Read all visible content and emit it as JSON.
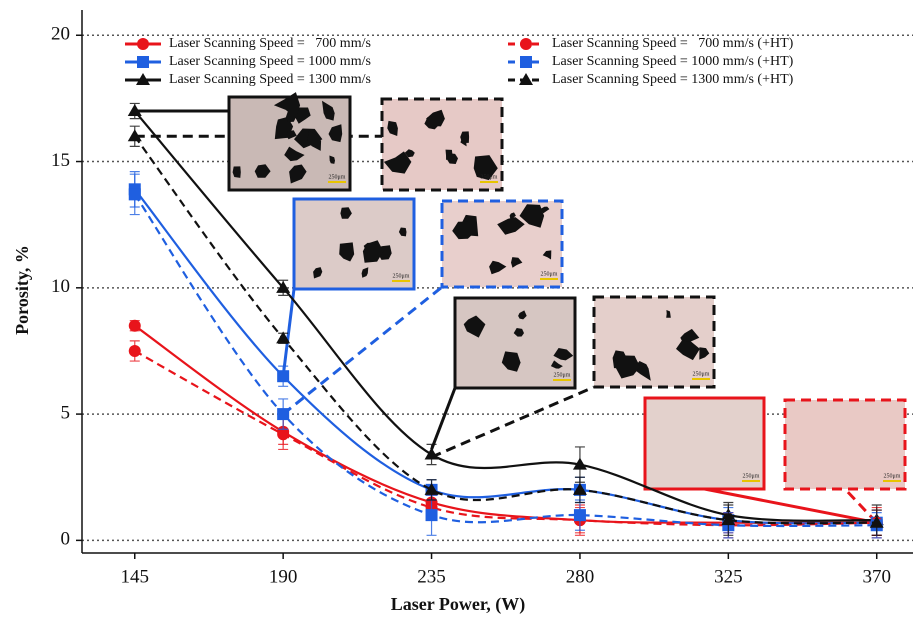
{
  "chart_data": {
    "type": "line",
    "x_label": "Laser Power, (W)",
    "y_label": "Porosity, %",
    "x": [
      145,
      190,
      235,
      280,
      325,
      370
    ],
    "xlim": [
      129,
      381
    ],
    "xticks": [
      145,
      190,
      235,
      280,
      325,
      370
    ],
    "ylim": [
      -0.5,
      21
    ],
    "yticks": [
      0,
      5,
      10,
      15,
      20
    ],
    "grid": true,
    "scale_bar_label": "250μm",
    "series": [
      {
        "name": "Laser Scanning Speed =   700 mm/s",
        "color": "#e8141b",
        "marker": "circle",
        "dashed": false,
        "values": [
          8.5,
          4.3,
          1.5,
          0.8,
          0.7,
          0.7
        ],
        "errors": [
          0.2,
          0.5,
          0.4,
          0.5,
          0.4,
          0.6
        ]
      },
      {
        "name": "Laser Scanning Speed = 1000 mm/s",
        "color": "#1f5fe0",
        "marker": "square",
        "dashed": false,
        "values": [
          13.9,
          6.5,
          2.0,
          2.0,
          0.8,
          0.7
        ],
        "errors": [
          0.7,
          0.4,
          0.4,
          0.5,
          0.5,
          0.5
        ]
      },
      {
        "name": "Laser Scanning Speed = 1300 mm/s",
        "color": "#111111",
        "marker": "triangle",
        "dashed": false,
        "values": [
          17.0,
          10.0,
          3.4,
          3.0,
          1.0,
          0.8
        ],
        "errors": [
          0.3,
          0.3,
          0.4,
          0.7,
          0.5,
          0.6
        ]
      },
      {
        "name": "Laser Scanning Speed =   700 mm/s (+HT)",
        "color": "#e8141b",
        "marker": "circle",
        "dashed": true,
        "values": [
          7.5,
          4.2,
          1.3,
          0.8,
          0.6,
          0.7
        ],
        "errors": [
          0.4,
          0.6,
          0.5,
          0.6,
          0.5,
          0.5
        ]
      },
      {
        "name": "Laser Scanning Speed = 1000 mm/s (+HT)",
        "color": "#1f5fe0",
        "marker": "square",
        "dashed": true,
        "values": [
          13.7,
          5.0,
          1.0,
          1.0,
          0.6,
          0.6
        ],
        "errors": [
          0.8,
          0.6,
          0.8,
          0.6,
          0.5,
          0.5
        ]
      },
      {
        "name": "Laser Scanning Speed = 1300 mm/s (+HT)",
        "color": "#111111",
        "marker": "triangle",
        "dashed": true,
        "values": [
          16.0,
          8.0,
          2.0,
          2.0,
          0.8,
          0.7
        ],
        "errors": [
          0.4,
          0.2,
          0.4,
          0.5,
          0.6,
          0.5
        ]
      }
    ]
  }
}
